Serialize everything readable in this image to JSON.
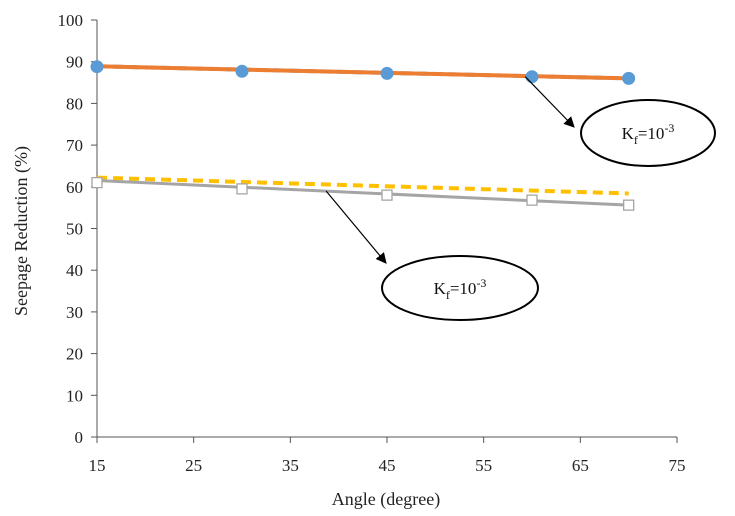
{
  "chart_data": {
    "type": "line",
    "title": "",
    "xlabel": "Angle (degree)",
    "ylabel": "Seepage Reduction (%)",
    "xlim": [
      15,
      75
    ],
    "ylim": [
      0,
      100
    ],
    "xticks": [
      15,
      25,
      35,
      45,
      55,
      65,
      75
    ],
    "yticks": [
      0,
      10,
      20,
      30,
      40,
      50,
      60,
      70,
      80,
      90,
      100
    ],
    "grid": false,
    "legend": "none",
    "series": [
      {
        "kind": "markers",
        "marker": "circle",
        "color": "#5b9bd5",
        "x": [
          15,
          30,
          45,
          60,
          70
        ],
        "y": [
          88.8,
          87.7,
          87.2,
          86.4,
          86.0
        ]
      },
      {
        "kind": "trendline",
        "style": "dashed",
        "color": "#5b9bd5",
        "x": [
          15,
          70
        ],
        "y": [
          88.9,
          86.0
        ]
      },
      {
        "kind": "line",
        "style": "solid",
        "color": "#ed7d31",
        "x": [
          15,
          70
        ],
        "y": [
          88.9,
          86.0
        ]
      },
      {
        "kind": "trendline",
        "style": "dashed",
        "color": "#ffc000",
        "x": [
          15,
          70
        ],
        "y": [
          62.2,
          58.4
        ]
      },
      {
        "kind": "line",
        "style": "solid",
        "color": "#a5a5a5",
        "x": [
          15,
          70
        ],
        "y": [
          61.5,
          55.6
        ]
      },
      {
        "kind": "markers",
        "marker": "square-open",
        "color": "#a5a5a5",
        "x": [
          15,
          30,
          45,
          60,
          70
        ],
        "y": [
          61.0,
          59.5,
          58.0,
          56.8,
          55.6
        ]
      }
    ],
    "annotations": [
      {
        "label_main": "K",
        "label_sub": "f",
        "label_rest": "=10",
        "label_sup": "-3",
        "points_to": {
          "x": 59.3,
          "y": 86.4
        }
      },
      {
        "label_main": "K",
        "label_sub": "f",
        "label_rest": "=10",
        "label_sup": "-3",
        "points_to": {
          "x": 38.7,
          "y": 59.0
        }
      }
    ]
  }
}
